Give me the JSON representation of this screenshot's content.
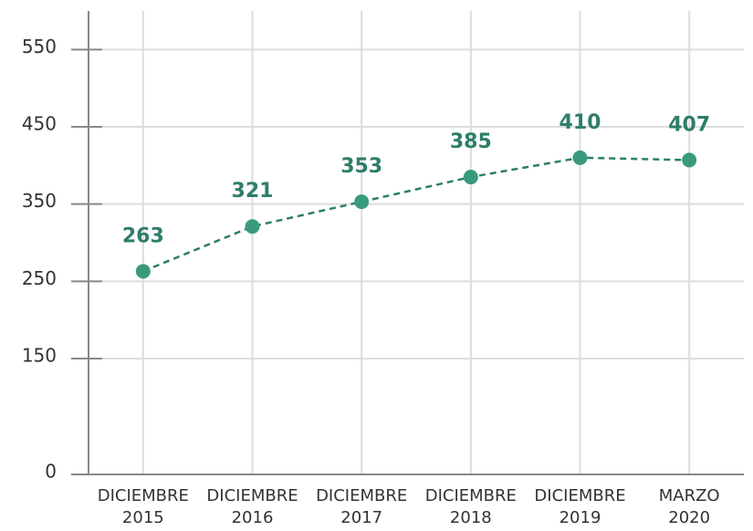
{
  "chart_data": {
    "type": "line",
    "categories": [
      "DICIEMBRE 2015",
      "DICIEMBRE 2016",
      "DICIEMBRE 2017",
      "DICIEMBRE 2018",
      "DICIEMBRE 2019",
      "MARZO 2020"
    ],
    "values": [
      263,
      321,
      353,
      385,
      410,
      407
    ],
    "color": "#2e7d6b",
    "marker_color": "#3a9a7e",
    "ylim": [
      0,
      600
    ],
    "yticks": [
      0,
      150,
      250,
      350,
      450,
      550
    ],
    "grid": true
  }
}
